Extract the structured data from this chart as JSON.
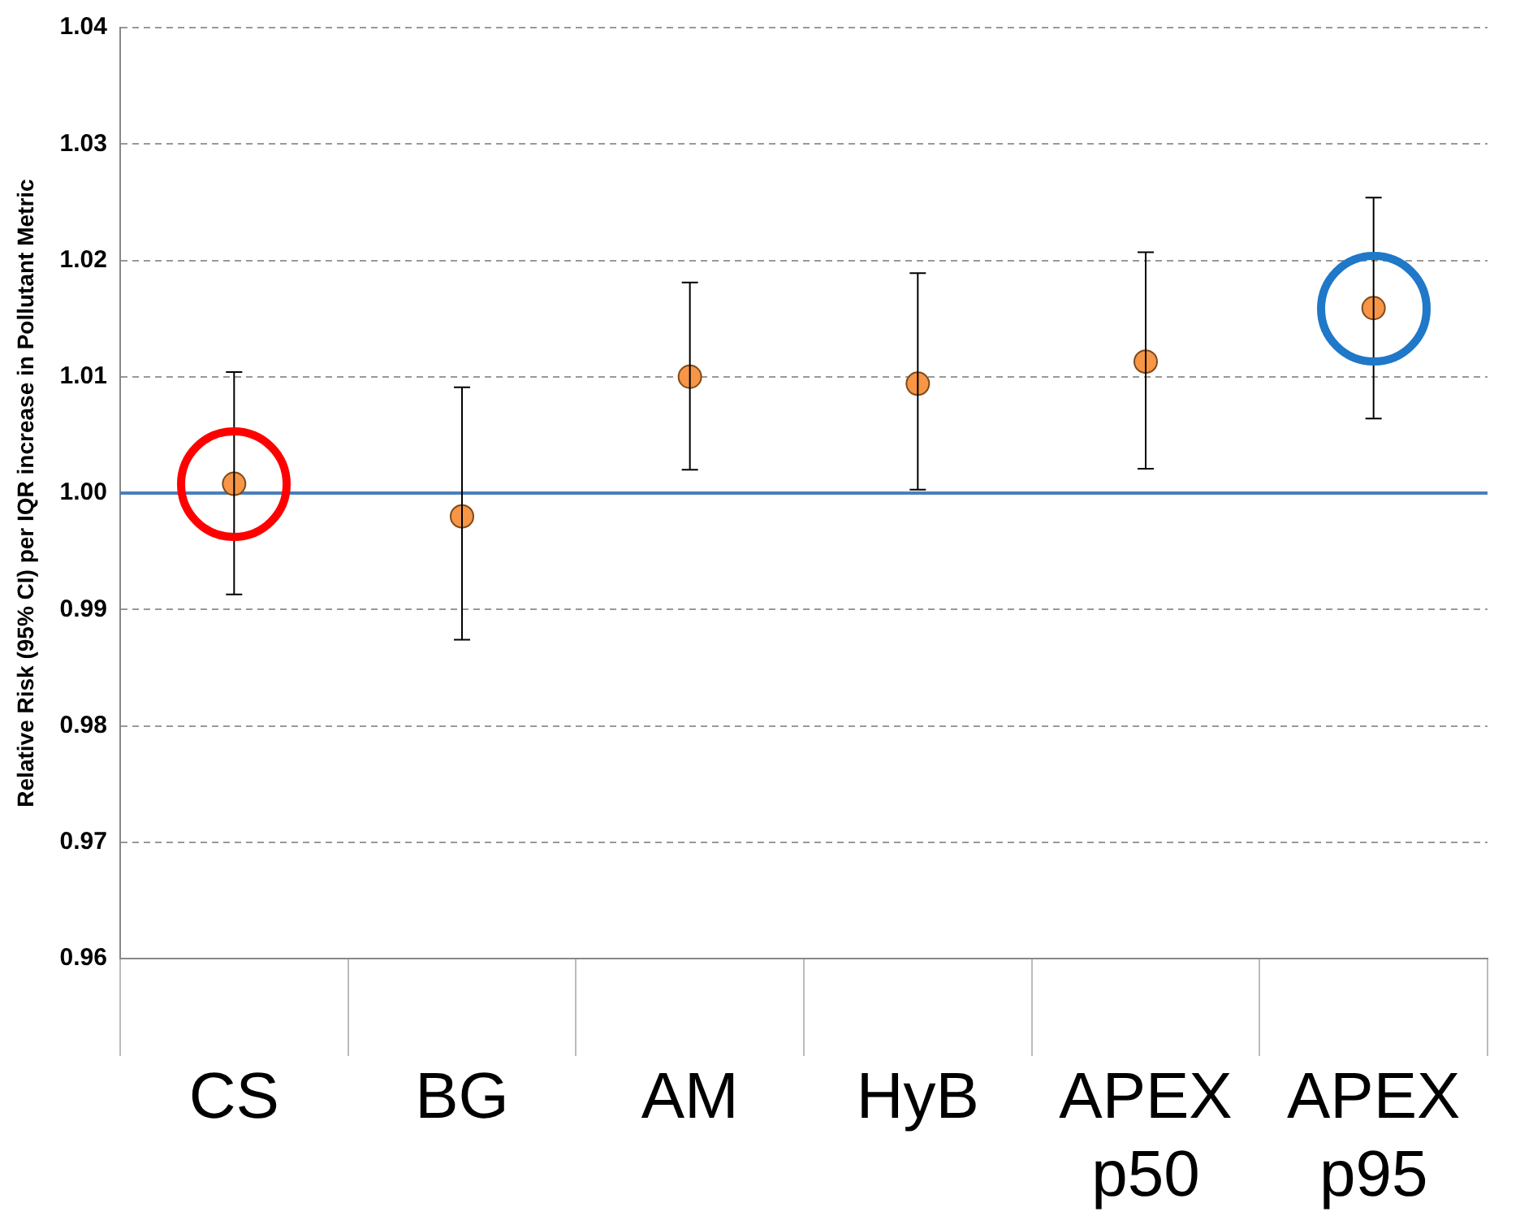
{
  "chart_data": {
    "type": "scatter",
    "ylabel": "Relative Risk (95% CI) per IQR increase in Pollutant Metric",
    "categories": [
      "CS",
      "BG",
      "AM",
      "HyB",
      "APEX p50",
      "APEX p95"
    ],
    "values": [
      1.0008,
      0.998,
      1.01,
      1.0094,
      1.0113,
      1.0159
    ],
    "errors": [
      [
        0.9913,
        1.0104
      ],
      [
        0.9874,
        1.0091
      ],
      [
        1.002,
        1.0181
      ],
      [
        1.0003,
        1.0189
      ],
      [
        1.0021,
        1.0207
      ],
      [
        1.0064,
        1.0254
      ]
    ],
    "color": "#f79646",
    "marker": "circle",
    "ylim": [
      0.96,
      1.04
    ],
    "yticks": [
      0.96,
      0.97,
      0.98,
      0.99,
      {
        "value": 1.0,
        "label": "1.00"
      },
      1.01,
      1.02,
      1.03,
      1.04
    ],
    "ref_lines": [
      {
        "axis": "y",
        "value": 1.0,
        "color": "#4a7ebb"
      }
    ],
    "grid": "y",
    "legend": false
  }
}
